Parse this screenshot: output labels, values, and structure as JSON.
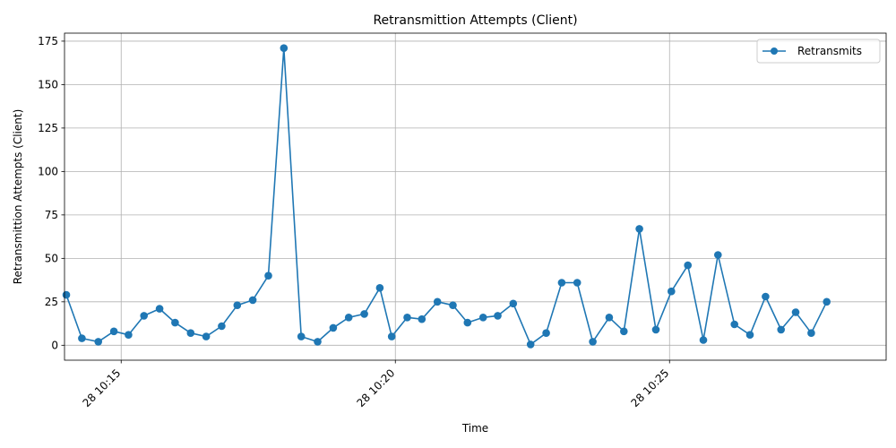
{
  "chart_data": {
    "type": "line",
    "title": "Retransmittion Attempts (Client)",
    "xlabel": "Time",
    "ylabel": "Retransmittion Attempts (Client)",
    "x_tick_labels": [
      "28 10:15",
      "28 10:20",
      "28 10:25"
    ],
    "x_ticks": [
      "10:15:00",
      "10:20:00",
      "10:25:00"
    ],
    "y_ticks": [
      0,
      25,
      50,
      75,
      100,
      125,
      150,
      175
    ],
    "xlim": [
      "10:13:58",
      "10:28:57"
    ],
    "ylim": [
      -8.6,
      179.6
    ],
    "grid": true,
    "legend_position": "top-right",
    "series": [
      {
        "name": "Retransmits",
        "color": "#1f77b4",
        "marker": "circle",
        "x": [
          "10:14:00",
          "10:14:17",
          "10:14:35",
          "10:14:52",
          "10:15:08",
          "10:15:25",
          "10:15:42",
          "10:15:59",
          "10:16:16",
          "10:16:33",
          "10:16:50",
          "10:17:07",
          "10:17:24",
          "10:17:41",
          "10:17:58",
          "10:18:17",
          "10:18:35",
          "10:18:52",
          "10:19:09",
          "10:19:26",
          "10:19:43",
          "10:19:56",
          "10:20:13",
          "10:20:29",
          "10:20:46",
          "10:21:03",
          "10:21:19",
          "10:21:36",
          "10:21:52",
          "10:22:09",
          "10:22:28",
          "10:22:45",
          "10:23:02",
          "10:23:19",
          "10:23:36",
          "10:23:54",
          "10:24:10",
          "10:24:27",
          "10:24:45",
          "10:25:02",
          "10:25:20",
          "10:25:37",
          "10:25:53",
          "10:26:11",
          "10:26:28",
          "10:26:45",
          "10:27:02",
          "10:27:18",
          "10:27:35",
          "10:27:52"
        ],
        "values": [
          29,
          4,
          2,
          8,
          6,
          17,
          21,
          13,
          7,
          5,
          11,
          23,
          26,
          40,
          171,
          5,
          2,
          10,
          16,
          18,
          33,
          5,
          16,
          15,
          25,
          23,
          13,
          16,
          17,
          24,
          0.5,
          7,
          36,
          36,
          2,
          16,
          8,
          67,
          9,
          31,
          46,
          3,
          52,
          12,
          6,
          28,
          9,
          19,
          7,
          25
        ]
      }
    ]
  }
}
